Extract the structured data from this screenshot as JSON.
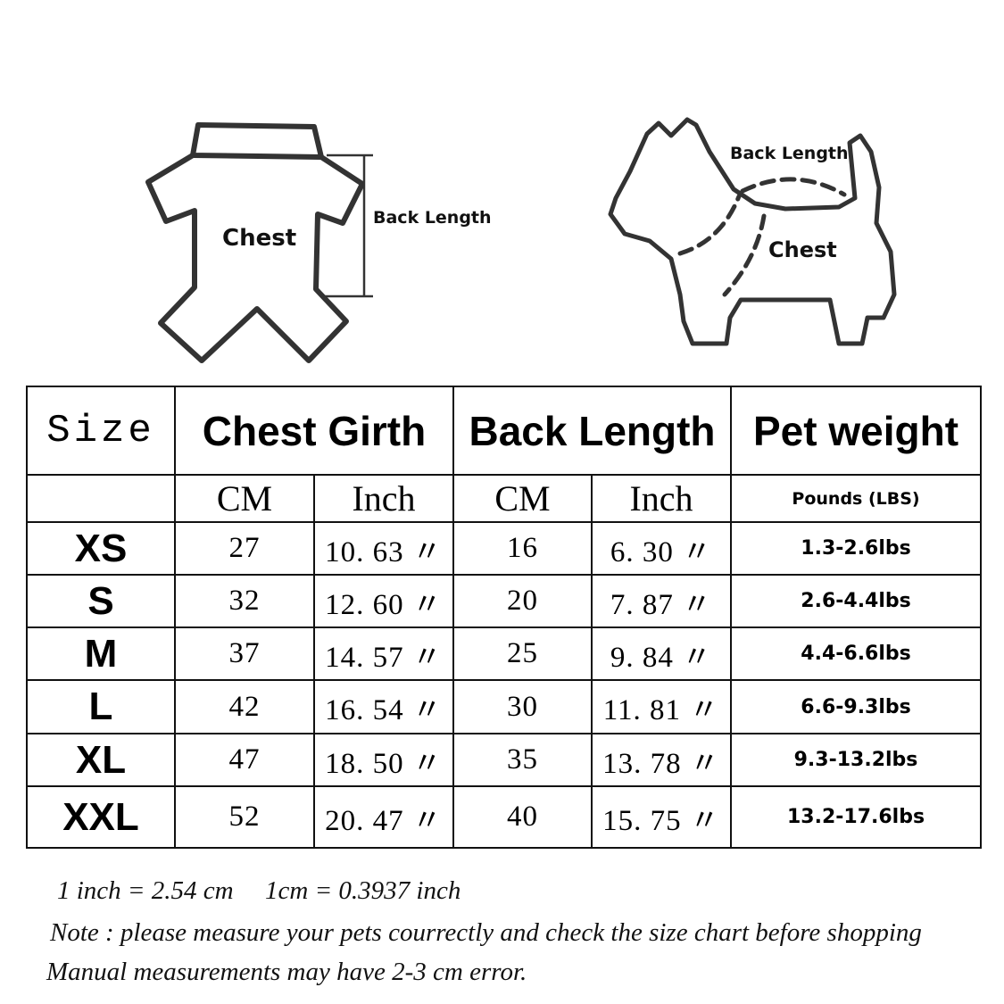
{
  "illustrations": {
    "garment": {
      "chest_label": "Chest",
      "back_length_label": "Back Length"
    },
    "dog": {
      "back_length_label": "Back Length",
      "chest_label": "Chest"
    }
  },
  "table": {
    "header": {
      "size": "Size",
      "chest_girth": "Chest Girth",
      "back_length": "Back Length",
      "pet_weight": "Pet weight"
    },
    "subheader": {
      "chest_cm": "CM",
      "chest_inch": "Inch",
      "back_cm": "CM",
      "back_inch": "Inch",
      "weight_unit": "Pounds (LBS)"
    },
    "rows": [
      {
        "size": "XS",
        "chest_cm": "27",
        "chest_inch": "10. 63 〃",
        "back_cm": "16",
        "back_inch": "6. 30 〃",
        "weight": "1.3-2.6lbs"
      },
      {
        "size": "S",
        "chest_cm": "32",
        "chest_inch": "12. 60 〃",
        "back_cm": "20",
        "back_inch": "7. 87 〃",
        "weight": "2.6-4.4lbs"
      },
      {
        "size": "M",
        "chest_cm": "37",
        "chest_inch": "14. 57 〃",
        "back_cm": "25",
        "back_inch": "9. 84 〃",
        "weight": "4.4-6.6lbs"
      },
      {
        "size": "L",
        "chest_cm": "42",
        "chest_inch": "16. 54 〃",
        "back_cm": "30",
        "back_inch": "11. 81 〃",
        "weight": "6.6-9.3lbs"
      },
      {
        "size": "XL",
        "chest_cm": "47",
        "chest_inch": "18. 50 〃",
        "back_cm": "35",
        "back_inch": "13. 78 〃",
        "weight": "9.3-13.2lbs"
      },
      {
        "size": "XXL",
        "chest_cm": "52",
        "chest_inch": "20. 47 〃",
        "back_cm": "40",
        "back_inch": "15. 75 〃",
        "weight": "13.2-17.6lbs"
      }
    ]
  },
  "notes": {
    "conversion_1": "1 inch = 2.54 cm",
    "conversion_2": "1cm = 0.3937 inch",
    "note_line": "Note : please measure your pets courrectly and check the size chart before shopping",
    "error_line": "Manual measurements may have 2-3 cm error."
  }
}
